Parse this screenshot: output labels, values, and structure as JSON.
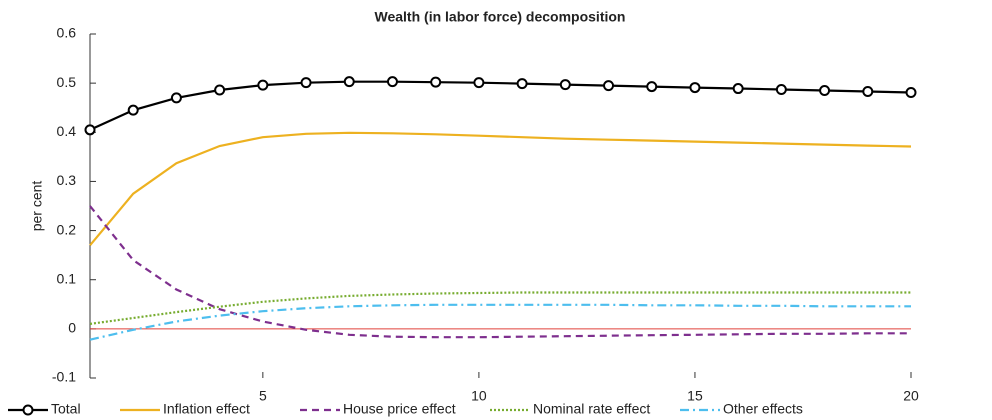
{
  "chart_data": {
    "type": "line",
    "title": "Wealth (in labor force) decomposition",
    "y_label": "per cent",
    "x": [
      1,
      2,
      3,
      4,
      5,
      6,
      7,
      8,
      9,
      10,
      11,
      12,
      13,
      14,
      15,
      16,
      17,
      18,
      19,
      20
    ],
    "xlim": [
      1,
      20
    ],
    "xticks": [
      5,
      10,
      15,
      20
    ],
    "ylim": [
      -0.1,
      0.6
    ],
    "yticks": [
      -0.1,
      0,
      0.1,
      0.2,
      0.3,
      0.4,
      0.5,
      0.6
    ],
    "reference_line": {
      "y": 0,
      "color": "#e0403a"
    },
    "legend": "bottom",
    "series": [
      {
        "name": "Total",
        "color": "#000000",
        "line_style": "solid",
        "marker": "circle",
        "values": [
          0.405,
          0.445,
          0.47,
          0.486,
          0.496,
          0.501,
          0.503,
          0.503,
          0.502,
          0.501,
          0.499,
          0.497,
          0.495,
          0.493,
          0.491,
          0.489,
          0.487,
          0.485,
          0.483,
          0.481
        ]
      },
      {
        "name": "Inflation effect",
        "color": "#edb120",
        "line_style": "solid",
        "values": [
          0.17,
          0.275,
          0.337,
          0.372,
          0.39,
          0.397,
          0.399,
          0.398,
          0.396,
          0.393,
          0.39,
          0.387,
          0.385,
          0.383,
          0.381,
          0.379,
          0.377,
          0.375,
          0.373,
          0.371
        ]
      },
      {
        "name": "House price effect",
        "color": "#7e2f8e",
        "line_style": "dashed",
        "values": [
          0.25,
          0.14,
          0.08,
          0.04,
          0.015,
          -0.002,
          -0.012,
          -0.016,
          -0.017,
          -0.017,
          -0.016,
          -0.015,
          -0.014,
          -0.013,
          -0.012,
          -0.011,
          -0.01,
          -0.01,
          -0.009,
          -0.009
        ]
      },
      {
        "name": "Nominal rate effect",
        "color": "#77ac30",
        "line_style": "dotted",
        "values": [
          0.01,
          0.022,
          0.034,
          0.045,
          0.055,
          0.062,
          0.067,
          0.07,
          0.072,
          0.073,
          0.074,
          0.074,
          0.074,
          0.074,
          0.074,
          0.074,
          0.074,
          0.074,
          0.074,
          0.074
        ]
      },
      {
        "name": "Other effects",
        "color": "#4dbeee",
        "line_style": "dashdot",
        "values": [
          -0.022,
          -0.002,
          0.015,
          0.027,
          0.036,
          0.042,
          0.046,
          0.048,
          0.049,
          0.049,
          0.049,
          0.049,
          0.049,
          0.048,
          0.048,
          0.047,
          0.047,
          0.046,
          0.046,
          0.046
        ]
      }
    ]
  }
}
